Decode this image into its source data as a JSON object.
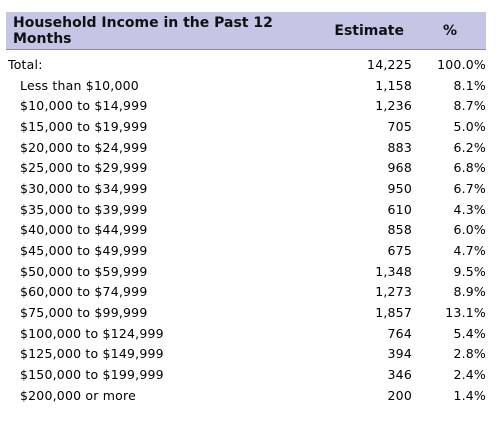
{
  "table": {
    "headers": {
      "label": "Household Income in the Past 12 Months",
      "estimate": "Estimate",
      "percent": "%"
    },
    "rows": [
      {
        "label": "Total:",
        "estimate": "14,225",
        "percent": "100.0%"
      },
      {
        "label": "Less than $10,000",
        "estimate": "1,158",
        "percent": "8.1%"
      },
      {
        "label": "$10,000 to $14,999",
        "estimate": "1,236",
        "percent": "8.7%"
      },
      {
        "label": "$15,000 to $19,999",
        "estimate": "705",
        "percent": "5.0%"
      },
      {
        "label": "$20,000 to $24,999",
        "estimate": "883",
        "percent": "6.2%"
      },
      {
        "label": "$25,000 to $29,999",
        "estimate": "968",
        "percent": "6.8%"
      },
      {
        "label": "$30,000 to $34,999",
        "estimate": "950",
        "percent": "6.7%"
      },
      {
        "label": "$35,000 to $39,999",
        "estimate": "610",
        "percent": "4.3%"
      },
      {
        "label": "$40,000 to $44,999",
        "estimate": "858",
        "percent": "6.0%"
      },
      {
        "label": "$45,000 to $49,999",
        "estimate": "675",
        "percent": "4.7%"
      },
      {
        "label": "$50,000 to $59,999",
        "estimate": "1,348",
        "percent": "9.5%"
      },
      {
        "label": "$60,000 to $74,999",
        "estimate": "1,273",
        "percent": "8.9%"
      },
      {
        "label": "$75,000 to $99,999",
        "estimate": "1,857",
        "percent": "13.1%"
      },
      {
        "label": "$100,000 to $124,999",
        "estimate": "764",
        "percent": "5.4%"
      },
      {
        "label": "$125,000 to $149,999",
        "estimate": "394",
        "percent": "2.8%"
      },
      {
        "label": "$150,000 to $199,999",
        "estimate": "346",
        "percent": "2.4%"
      },
      {
        "label": "$200,000 or more",
        "estimate": "200",
        "percent": "1.4%"
      }
    ]
  },
  "colors": {
    "header_background": "#c5c5e6"
  }
}
